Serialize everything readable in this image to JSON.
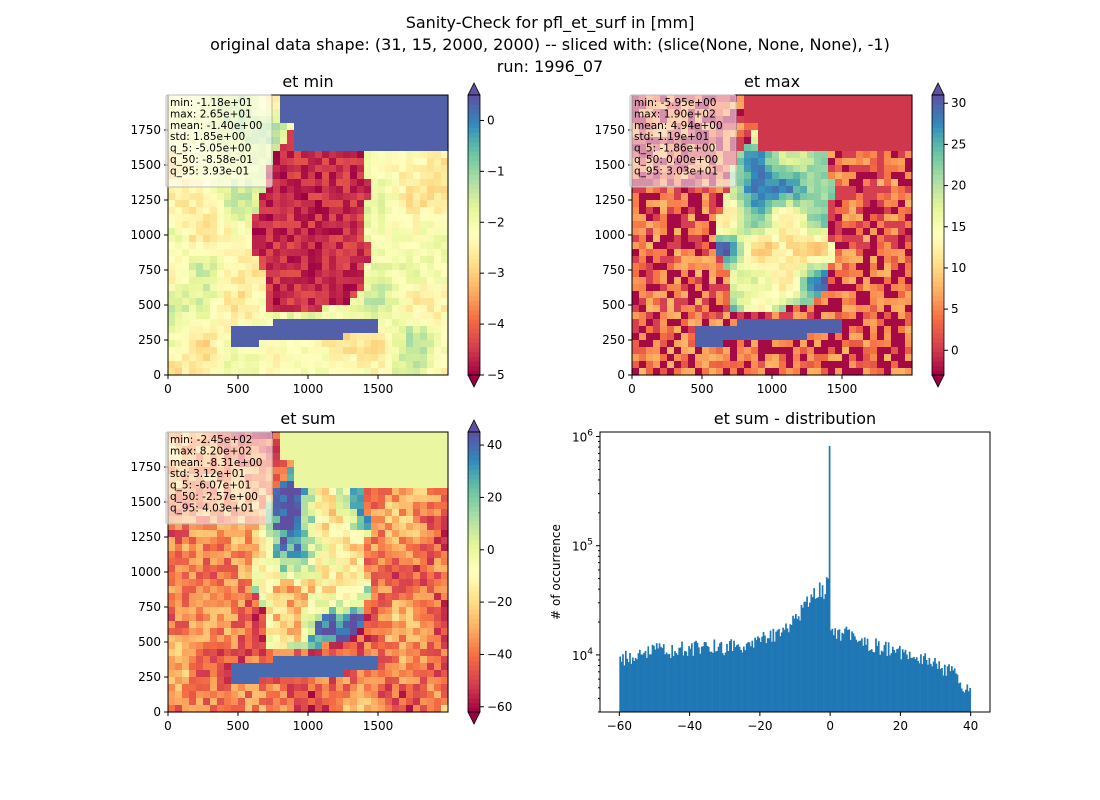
{
  "figure": {
    "suptitle_lines": [
      "Sanity-Check for pfl_et_surf in [mm]",
      "original data shape: (31, 15, 2000, 2000) -- sliced with: (slice(None, None, None), -1)",
      "run: 1996_07"
    ]
  },
  "chart_data": [
    {
      "type": "heatmap",
      "title": "et min",
      "xlim": [
        0,
        2000
      ],
      "ylim": [
        0,
        2000
      ],
      "xticks": [
        0,
        500,
        1000,
        1500
      ],
      "yticks": [
        0,
        250,
        500,
        750,
        1000,
        1250,
        1500,
        1750
      ],
      "colormap": "Spectral",
      "colorbar": {
        "range": [
          -5,
          0.5
        ],
        "ticks": [
          0,
          -1,
          -2,
          -3,
          -4,
          -5
        ],
        "extend": "both"
      },
      "stats": [
        "min: -1.18e+01",
        "max: 2.65e+01",
        "mean: -1.40e+00",
        "std: 1.85e+00",
        "q_5: -5.05e+00",
        "q_50: -8.58e-01",
        "q_95: 3.93e-01"
      ]
    },
    {
      "type": "heatmap",
      "title": "et max",
      "xlim": [
        0,
        2000
      ],
      "ylim": [
        0,
        2000
      ],
      "xticks": [
        0,
        500,
        1000,
        1500
      ],
      "yticks": [
        0,
        250,
        500,
        750,
        1000,
        1250,
        1500,
        1750
      ],
      "colormap": "Spectral",
      "colorbar": {
        "range": [
          -3,
          31
        ],
        "ticks": [
          0,
          5,
          10,
          15,
          20,
          25,
          30
        ],
        "extend": "both"
      },
      "stats": [
        "min: -5.95e+00",
        "max: 1.90e+02",
        "mean: 4.94e+00",
        "std: 1.19e+01",
        "q_5: -1.86e+00",
        "q_50: 0.00e+00",
        "q_95: 3.03e+01"
      ]
    },
    {
      "type": "heatmap",
      "title": "et sum",
      "xlim": [
        0,
        2000
      ],
      "ylim": [
        0,
        2000
      ],
      "xticks": [
        0,
        500,
        1000,
        1500
      ],
      "yticks": [
        0,
        250,
        500,
        750,
        1000,
        1250,
        1500,
        1750
      ],
      "colormap": "Spectral",
      "colorbar": {
        "range": [
          -62,
          45
        ],
        "ticks": [
          40,
          20,
          0,
          -20,
          -40,
          -60
        ],
        "extend": "both"
      },
      "stats": [
        "min: -2.45e+02",
        "max: 8.20e+02",
        "mean: -8.31e+00",
        "std: 3.12e+01",
        "q_5: -6.07e+01",
        "q_50: -2.57e+00",
        "q_95: 4.03e+01"
      ]
    },
    {
      "type": "bar",
      "title": "et sum - distribution",
      "xlabel": "",
      "ylabel": "# of occurrence",
      "yscale": "log",
      "xlim": [
        -65.5,
        45.5
      ],
      "ylim": [
        3000,
        1100000
      ],
      "xticks": [
        -60,
        -40,
        -20,
        0,
        20,
        40
      ],
      "color": "#1f77b4",
      "bin_edges_range": [
        -60,
        40
      ],
      "bins": 250,
      "keypoints": [
        [
          -60,
          9000
        ],
        [
          -50,
          11000
        ],
        [
          -40,
          11500
        ],
        [
          -30,
          12000
        ],
        [
          -20,
          13500
        ],
        [
          -15,
          16000
        ],
        [
          -10,
          21000
        ],
        [
          -7,
          30000
        ],
        [
          -5,
          38000
        ],
        [
          -3,
          40000
        ],
        [
          -2,
          37000
        ],
        [
          -1,
          45000
        ],
        [
          0,
          16000
        ],
        [
          2,
          16000
        ],
        [
          5,
          15500
        ],
        [
          10,
          13000
        ],
        [
          15,
          11500
        ],
        [
          20,
          10500
        ],
        [
          25,
          9500
        ],
        [
          30,
          8500
        ],
        [
          35,
          7000
        ],
        [
          38,
          5500
        ],
        [
          40,
          5000
        ]
      ],
      "spikes": [
        {
          "x": -0.2,
          "value": 820000
        },
        {
          "x": -0.6,
          "value": 50000
        },
        {
          "x": -1.4,
          "value": 36000
        }
      ]
    }
  ]
}
